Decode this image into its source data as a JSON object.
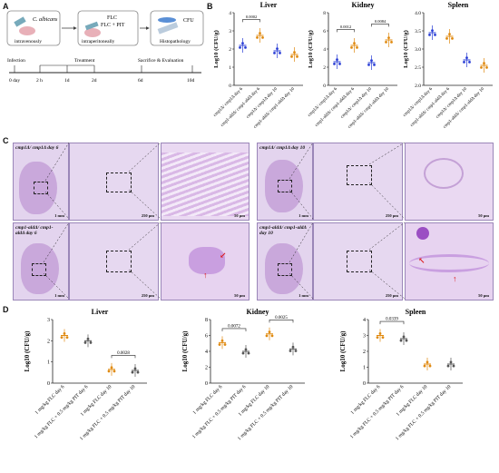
{
  "panels": {
    "A": "A",
    "B": "B",
    "C": "C",
    "D": "D"
  },
  "schematic": {
    "box1_title": "C. albicans",
    "box1_sub": "intravenously",
    "box2_title_line1": "FLC",
    "box2_title_line2": "FLC + PIT",
    "box2_sub": "intraperitoneally",
    "box3_title": "CFU",
    "box3_sub": "Histopathology",
    "phase_infection": "Infection",
    "phase_treatment": "Treatment",
    "phase_sacrifice": "Sacrifice & Evaluation",
    "timeline_ticks": [
      "0 day",
      "2 h",
      "1d",
      "2d",
      "6d",
      "10d"
    ]
  },
  "panel_b": {
    "ylabel": "Log10 (CFU/g)",
    "categories": [
      "cmp1Δ/ cmp1Δ day 6",
      "cmp1-aldΔ/ cmp1-aldΔ day 6",
      "cmp1Δ/ cmp1Δ day 10",
      "cmp1-aldΔ/ cmp1-aldΔ day 10"
    ],
    "colors": [
      "#2b3fd6",
      "#e08a10",
      "#2b3fd6",
      "#e08a10"
    ]
  },
  "panel_d": {
    "ylabel": "Log10 (CFU/g)",
    "categories": [
      "1 mg/kg FLC day 6",
      "1 mg/kg FLC + 0.5 mg/kg PIT day 6",
      "1 mg/kg FLC day 10",
      "1 mg/kg FLC + 0.5 mg/kg PIT day 10"
    ],
    "colors": [
      "#e08a10",
      "#555555",
      "#e08a10",
      "#555555"
    ]
  },
  "chart_data": [
    {
      "type": "scatter",
      "title": "Liver",
      "panel": "B",
      "ylim": [
        0,
        4
      ],
      "yticks": [
        0,
        1,
        2,
        3,
        4
      ],
      "series": [
        {
          "values": [
            2.2,
            2.75,
            1.9,
            1.7
          ]
        }
      ],
      "annotations": [
        {
          "text": "0.0002",
          "between": [
            1,
            2
          ]
        }
      ]
    },
    {
      "type": "scatter",
      "title": "Kidney",
      "panel": "B",
      "ylim": [
        0,
        8
      ],
      "yticks": [
        0,
        2,
        4,
        6,
        8
      ],
      "series": [
        {
          "values": [
            2.6,
            4.4,
            2.5,
            5.0
          ]
        }
      ],
      "annotations": [
        {
          "text": "0.0012",
          "between": [
            1,
            2
          ]
        },
        {
          "text": "0.0084",
          "between": [
            3,
            4
          ]
        }
      ]
    },
    {
      "type": "scatter",
      "title": "Spleen",
      "panel": "B",
      "ylim": [
        2.0,
        4.0
      ],
      "yticks": [
        2.0,
        2.5,
        3.0,
        3.5,
        4.0
      ],
      "series": [
        {
          "values": [
            3.45,
            3.35,
            2.7,
            2.55
          ]
        }
      ],
      "annotations": []
    },
    {
      "type": "scatter",
      "title": "Liver",
      "panel": "D",
      "ylim": [
        0,
        3
      ],
      "yticks": [
        0,
        1,
        2,
        3
      ],
      "series": [
        {
          "values": [
            2.25,
            2.0,
            0.65,
            0.6
          ]
        }
      ],
      "annotations": [
        {
          "text": "0.0028",
          "between": [
            3,
            4
          ]
        }
      ]
    },
    {
      "type": "scatter",
      "title": "Kidney",
      "panel": "D",
      "ylim": [
        0,
        8
      ],
      "yticks": [
        0,
        2,
        4,
        6,
        8
      ],
      "series": [
        {
          "values": [
            5.1,
            4.0,
            6.2,
            4.3
          ]
        }
      ],
      "annotations": [
        {
          "text": "0.0072",
          "between": [
            1,
            2
          ]
        },
        {
          "text": "0.0025",
          "between": [
            3,
            4
          ]
        }
      ]
    },
    {
      "type": "scatter",
      "title": "Spleen",
      "panel": "D",
      "ylim": [
        0,
        4
      ],
      "yticks": [
        0,
        1,
        2,
        3,
        4
      ],
      "series": [
        {
          "values": [
            3.0,
            2.8,
            1.2,
            1.2
          ]
        }
      ],
      "annotations": [
        {
          "text": "0.0339",
          "between": [
            1,
            2
          ]
        }
      ]
    }
  ],
  "panel_c": {
    "labels": [
      "cmp1Δ/ cmp1Δ day 6",
      "cmp1Δ/ cmp1Δ day 10",
      "cmp1-aldΔ/ cmp1-aldΔ day 6",
      "cmp1-aldΔ/ cmp1-aldΔ day 10"
    ],
    "scales": [
      "1 mm",
      "250 μm",
      "50 μm"
    ]
  }
}
